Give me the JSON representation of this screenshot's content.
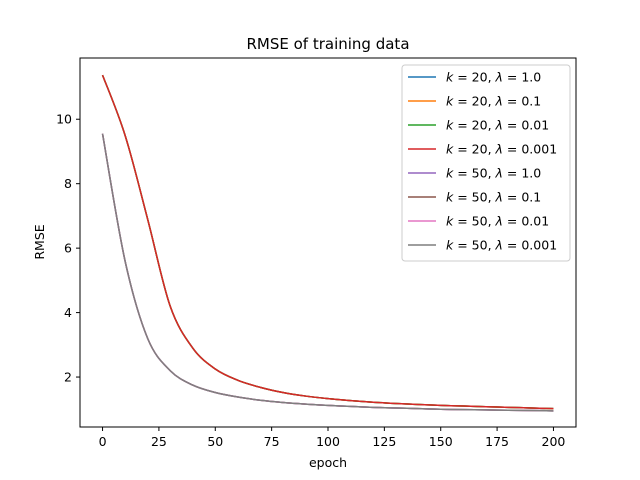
{
  "chart_data": {
    "type": "line",
    "title": "RMSE of training data",
    "xlabel": "epoch",
    "ylabel": "RMSE",
    "xlim": [
      -10,
      210
    ],
    "ylim": [
      0.45,
      11.9
    ],
    "xticks": [
      0,
      25,
      50,
      75,
      100,
      125,
      150,
      175,
      200
    ],
    "yticks": [
      2,
      4,
      6,
      8,
      10
    ],
    "grid": false,
    "legend_position": "top-right",
    "x": [
      0,
      10,
      20,
      30,
      40,
      50,
      60,
      70,
      80,
      90,
      100,
      110,
      120,
      130,
      140,
      150,
      160,
      170,
      180,
      190,
      200
    ],
    "series": [
      {
        "label": "k = 20, λ = 1.0",
        "k": "20",
        "lambda": "1.0",
        "color": "#1f77b4",
        "values": [
          11.37,
          9.5,
          6.9,
          4.2,
          2.9,
          2.25,
          1.9,
          1.68,
          1.52,
          1.41,
          1.33,
          1.27,
          1.22,
          1.18,
          1.15,
          1.12,
          1.1,
          1.08,
          1.06,
          1.04,
          1.02
        ]
      },
      {
        "label": "k = 20, λ = 0.1",
        "k": "20",
        "lambda": "0.1",
        "color": "#ff7f0e",
        "values": [
          11.37,
          9.5,
          6.9,
          4.2,
          2.9,
          2.25,
          1.9,
          1.68,
          1.52,
          1.41,
          1.33,
          1.27,
          1.22,
          1.18,
          1.15,
          1.12,
          1.1,
          1.08,
          1.06,
          1.04,
          1.02
        ]
      },
      {
        "label": "k = 20, λ = 0.01",
        "k": "20",
        "lambda": "0.01",
        "color": "#2ca02c",
        "values": [
          11.37,
          9.5,
          6.9,
          4.2,
          2.9,
          2.25,
          1.9,
          1.68,
          1.52,
          1.41,
          1.33,
          1.27,
          1.22,
          1.18,
          1.15,
          1.12,
          1.1,
          1.08,
          1.06,
          1.04,
          1.02
        ]
      },
      {
        "label": "k = 20, λ = 0.001",
        "k": "20",
        "lambda": "0.001",
        "color": "#d62728",
        "values": [
          11.37,
          9.5,
          6.9,
          4.2,
          2.9,
          2.25,
          1.9,
          1.68,
          1.52,
          1.41,
          1.33,
          1.27,
          1.22,
          1.18,
          1.15,
          1.12,
          1.1,
          1.08,
          1.06,
          1.04,
          1.02
        ]
      },
      {
        "label": "k = 50, λ = 1.0",
        "k": "50",
        "lambda": "1.0",
        "color": "#9467bd",
        "values": [
          9.55,
          5.6,
          3.2,
          2.2,
          1.75,
          1.52,
          1.38,
          1.28,
          1.21,
          1.16,
          1.12,
          1.09,
          1.06,
          1.04,
          1.02,
          1.0,
          0.99,
          0.98,
          0.97,
          0.96,
          0.95
        ]
      },
      {
        "label": "k = 50, λ = 0.1",
        "k": "50",
        "lambda": "0.1",
        "color": "#8c564b",
        "values": [
          9.55,
          5.6,
          3.2,
          2.2,
          1.75,
          1.52,
          1.38,
          1.28,
          1.21,
          1.16,
          1.12,
          1.09,
          1.06,
          1.04,
          1.02,
          1.0,
          0.99,
          0.98,
          0.97,
          0.96,
          0.95
        ]
      },
      {
        "label": "k = 50, λ = 0.01",
        "k": "50",
        "lambda": "0.01",
        "color": "#e377c2",
        "values": [
          9.55,
          5.6,
          3.2,
          2.2,
          1.75,
          1.52,
          1.38,
          1.28,
          1.21,
          1.16,
          1.12,
          1.09,
          1.06,
          1.04,
          1.02,
          1.0,
          0.99,
          0.98,
          0.97,
          0.96,
          0.95
        ]
      },
      {
        "label": "k = 50, λ = 0.001",
        "k": "50",
        "lambda": "0.001",
        "color": "#7f7f7f",
        "values": [
          9.55,
          5.6,
          3.2,
          2.2,
          1.75,
          1.52,
          1.38,
          1.28,
          1.21,
          1.16,
          1.12,
          1.09,
          1.06,
          1.04,
          1.02,
          1.0,
          0.99,
          0.98,
          0.97,
          0.96,
          0.95
        ]
      }
    ]
  }
}
